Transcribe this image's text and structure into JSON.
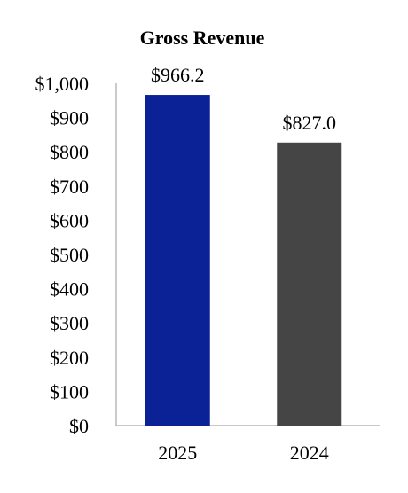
{
  "chart_data": {
    "type": "bar",
    "title": "Gross Revenue",
    "xlabel": "",
    "ylabel": "",
    "categories": [
      "2025",
      "2024"
    ],
    "values": [
      966.2,
      827.0
    ],
    "data_labels": [
      "$966.2",
      "$827.0"
    ],
    "ylim": [
      0,
      1000
    ],
    "yticks": [
      0,
      100,
      200,
      300,
      400,
      500,
      600,
      700,
      800,
      900,
      1000
    ],
    "ytick_labels": [
      "$0",
      "$100",
      "$200",
      "$300",
      "$400",
      "$500",
      "$600",
      "$700",
      "$800",
      "$900",
      "$1,000"
    ],
    "colors": [
      "#0b2296",
      "#454545"
    ],
    "grid": false,
    "legend": "none"
  }
}
